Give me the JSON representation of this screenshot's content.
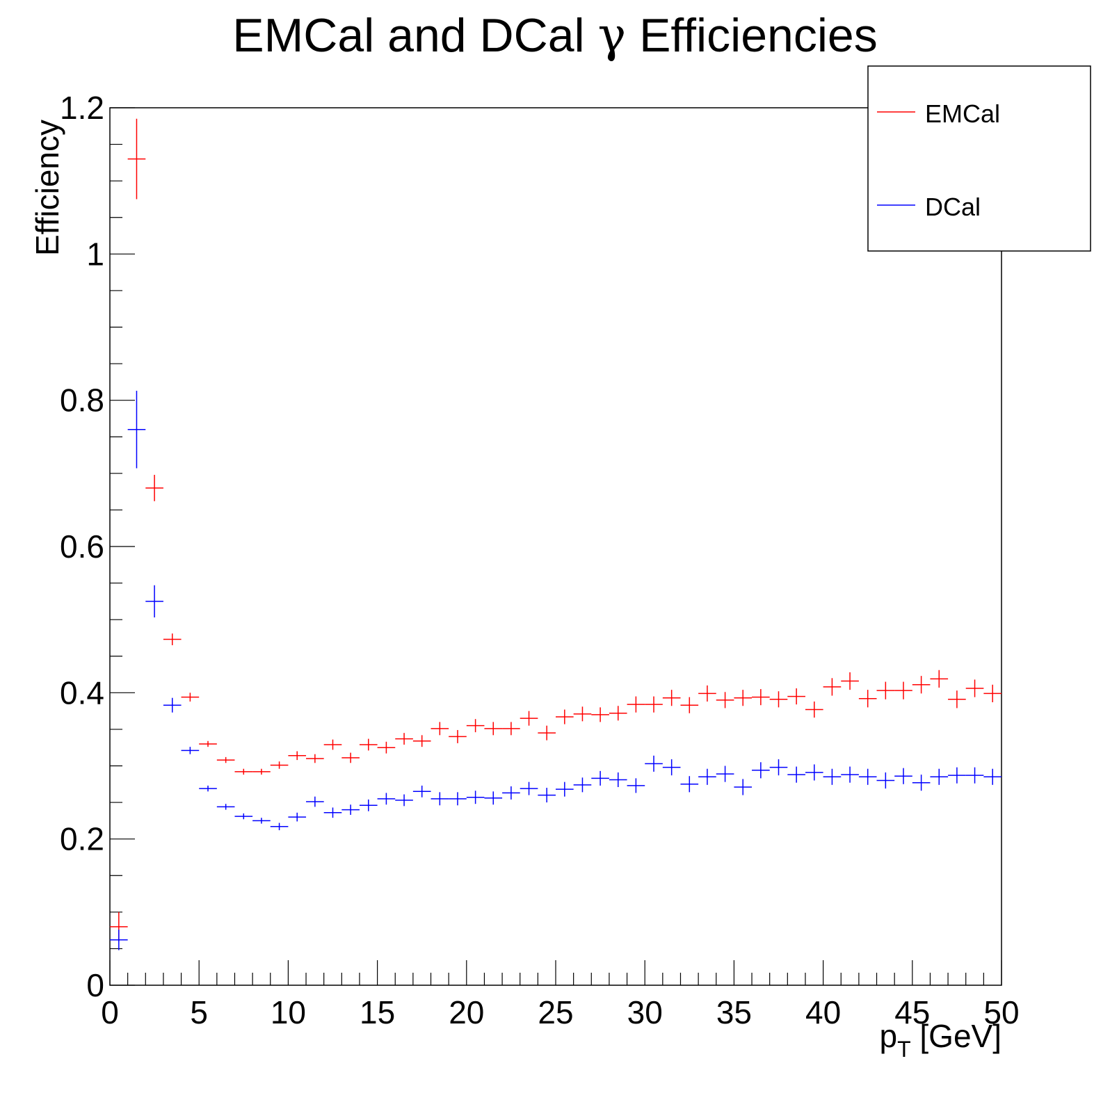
{
  "chart_data": {
    "type": "scatter",
    "title_main": "EMCal and DCal ",
    "title_symbol": "γ",
    "title_end": " Efficiencies",
    "ylabel": "Efficiency",
    "xlabel_main": "p",
    "xlabel_sub": "T",
    "xlabel_unit": " [GeV]",
    "xlim": [
      0,
      50
    ],
    "ylim": [
      0,
      1.2
    ],
    "x_ticks": [
      "0",
      "5",
      "10",
      "15",
      "20",
      "25",
      "30",
      "35",
      "40",
      "45",
      "50"
    ],
    "y_ticks": [
      "0",
      "0.2",
      "0.4",
      "0.6",
      "0.8",
      "1",
      "1.2"
    ],
    "grid": false,
    "legend_position": "top-right",
    "bin_width": 1,
    "series": [
      {
        "name": "EMCal",
        "color": "#ff0000",
        "x": [
          0.5,
          1.5,
          2.5,
          3.5,
          4.5,
          5.5,
          6.5,
          7.5,
          8.5,
          9.5,
          10.5,
          11.5,
          12.5,
          13.5,
          14.5,
          15.5,
          16.5,
          17.5,
          18.5,
          19.5,
          20.5,
          21.5,
          22.5,
          23.5,
          24.5,
          25.5,
          26.5,
          27.5,
          28.5,
          29.5,
          30.5,
          31.5,
          32.5,
          33.5,
          34.5,
          35.5,
          36.5,
          37.5,
          38.5,
          39.5,
          40.5,
          41.5,
          42.5,
          43.5,
          44.5,
          45.5,
          46.5,
          47.5,
          48.5,
          49.5
        ],
        "y": [
          0.08,
          1.13,
          0.68,
          0.473,
          0.394,
          0.33,
          0.308,
          0.292,
          0.292,
          0.301,
          0.314,
          0.31,
          0.329,
          0.311,
          0.329,
          0.325,
          0.337,
          0.334,
          0.351,
          0.34,
          0.355,
          0.351,
          0.351,
          0.365,
          0.345,
          0.367,
          0.371,
          0.37,
          0.372,
          0.384,
          0.384,
          0.393,
          0.383,
          0.399,
          0.39,
          0.393,
          0.394,
          0.391,
          0.395,
          0.377,
          0.408,
          0.416,
          0.392,
          0.403,
          0.403,
          0.411,
          0.419,
          0.391,
          0.406,
          0.399
        ],
        "yerr": [
          0.02,
          0.055,
          0.018,
          0.008,
          0.006,
          0.004,
          0.004,
          0.004,
          0.004,
          0.005,
          0.006,
          0.006,
          0.007,
          0.007,
          0.008,
          0.008,
          0.008,
          0.008,
          0.009,
          0.009,
          0.009,
          0.009,
          0.009,
          0.01,
          0.01,
          0.01,
          0.01,
          0.01,
          0.01,
          0.011,
          0.011,
          0.011,
          0.011,
          0.011,
          0.011,
          0.011,
          0.011,
          0.011,
          0.011,
          0.011,
          0.012,
          0.012,
          0.012,
          0.012,
          0.012,
          0.012,
          0.012,
          0.012,
          0.012,
          0.012
        ]
      },
      {
        "name": "DCal",
        "color": "#0000ff",
        "x": [
          0.5,
          1.5,
          2.5,
          3.5,
          4.5,
          5.5,
          6.5,
          7.5,
          8.5,
          9.5,
          10.5,
          11.5,
          12.5,
          13.5,
          14.5,
          15.5,
          16.5,
          17.5,
          18.5,
          19.5,
          20.5,
          21.5,
          22.5,
          23.5,
          24.5,
          25.5,
          26.5,
          27.5,
          28.5,
          29.5,
          30.5,
          31.5,
          32.5,
          33.5,
          34.5,
          35.5,
          36.5,
          37.5,
          38.5,
          39.5,
          40.5,
          41.5,
          42.5,
          43.5,
          44.5,
          45.5,
          46.5,
          47.5,
          48.5,
          49.5
        ],
        "y": [
          0.062,
          0.76,
          0.525,
          0.383,
          0.321,
          0.269,
          0.244,
          0.231,
          0.225,
          0.217,
          0.23,
          0.251,
          0.236,
          0.24,
          0.246,
          0.255,
          0.253,
          0.265,
          0.255,
          0.255,
          0.257,
          0.256,
          0.263,
          0.269,
          0.26,
          0.268,
          0.274,
          0.283,
          0.281,
          0.273,
          0.303,
          0.298,
          0.275,
          0.285,
          0.289,
          0.271,
          0.294,
          0.298,
          0.288,
          0.291,
          0.285,
          0.288,
          0.285,
          0.28,
          0.286,
          0.277,
          0.285,
          0.287,
          0.287,
          0.285
        ],
        "yerr": [
          0.014,
          0.053,
          0.022,
          0.01,
          0.005,
          0.004,
          0.004,
          0.004,
          0.004,
          0.005,
          0.006,
          0.007,
          0.007,
          0.007,
          0.008,
          0.008,
          0.008,
          0.008,
          0.009,
          0.009,
          0.009,
          0.009,
          0.009,
          0.009,
          0.01,
          0.01,
          0.01,
          0.01,
          0.01,
          0.01,
          0.011,
          0.011,
          0.011,
          0.011,
          0.011,
          0.011,
          0.011,
          0.011,
          0.011,
          0.011,
          0.011,
          0.011,
          0.011,
          0.011,
          0.011,
          0.011,
          0.011,
          0.011,
          0.011,
          0.011
        ]
      }
    ]
  }
}
